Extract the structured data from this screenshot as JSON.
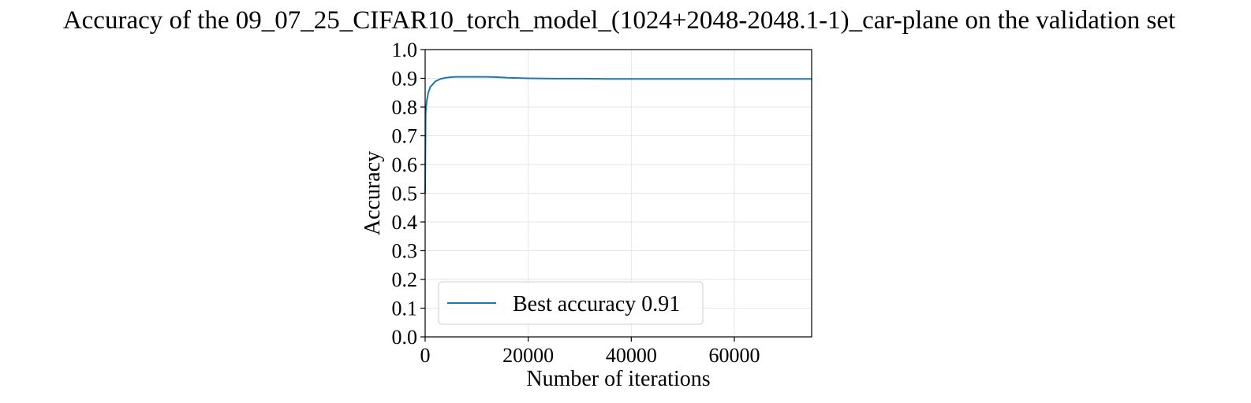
{
  "chart_data": {
    "type": "line",
    "title": "Accuracy of the 09_07_25_CIFAR10_torch_model_(1024+2048-2048.1-1)_car-plane on the validation set",
    "xlabel": "Number of iterations",
    "ylabel": "Accuracy",
    "xlim": [
      0,
      75000
    ],
    "ylim": [
      0.0,
      1.0
    ],
    "x_ticks": [
      0,
      20000,
      40000,
      60000
    ],
    "x_tick_labels": [
      "0",
      "20000",
      "40000",
      "60000"
    ],
    "y_ticks": [
      0.0,
      0.1,
      0.2,
      0.3,
      0.4,
      0.5,
      0.6,
      0.7,
      0.8,
      0.9,
      1.0
    ],
    "y_tick_labels": [
      "0.0",
      "0.1",
      "0.2",
      "0.3",
      "0.4",
      "0.5",
      "0.6",
      "0.7",
      "0.8",
      "0.9",
      "1.0"
    ],
    "grid": true,
    "legend_position": "lower-left",
    "series": [
      {
        "name": "Best accuracy 0.91",
        "color": "#1f77b4",
        "x": [
          0,
          100,
          300,
          600,
          1000,
          1500,
          2000,
          3000,
          4000,
          5000,
          6000,
          8000,
          10000,
          12000,
          14000,
          16000,
          18000,
          20000,
          25000,
          30000,
          35000,
          40000,
          45000,
          50000,
          55000,
          60000,
          65000,
          70000,
          75000
        ],
        "y": [
          0.5,
          0.78,
          0.82,
          0.85,
          0.87,
          0.88,
          0.89,
          0.898,
          0.902,
          0.904,
          0.905,
          0.905,
          0.905,
          0.905,
          0.904,
          0.902,
          0.901,
          0.9,
          0.899,
          0.899,
          0.898,
          0.898,
          0.898,
          0.898,
          0.898,
          0.898,
          0.898,
          0.898,
          0.898
        ]
      }
    ]
  }
}
